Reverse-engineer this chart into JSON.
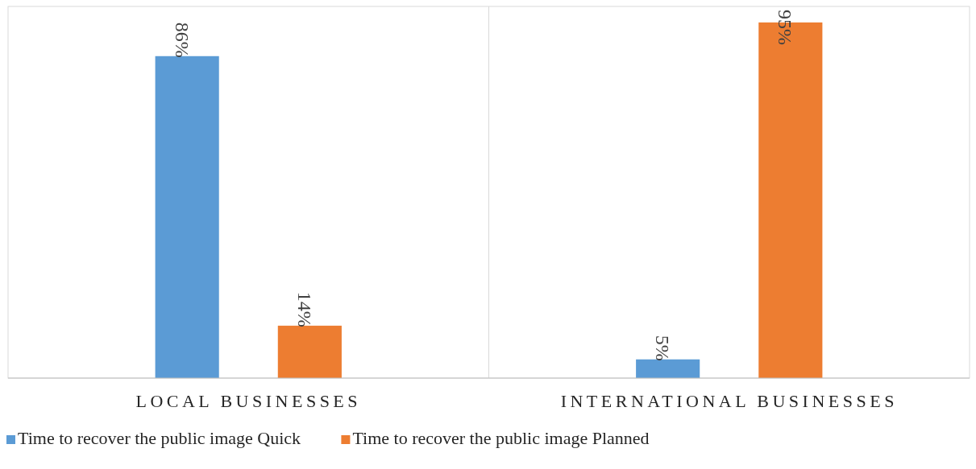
{
  "chart_data": {
    "type": "bar",
    "categories": [
      "LOCAL BUSINESSES",
      "INTERNATIONAL BUSINESSES"
    ],
    "series": [
      {
        "name": "Time to recover the public image Quick",
        "color": "#5b9bd5",
        "values": [
          86,
          5
        ],
        "value_labels": [
          "86%",
          "5%"
        ]
      },
      {
        "name": "Time to recover the public image Planned",
        "color": "#ed7d31",
        "values": [
          14,
          95
        ],
        "value_labels": [
          "14%",
          "95%"
        ]
      }
    ],
    "legend": "bottom left",
    "grid": false
  }
}
